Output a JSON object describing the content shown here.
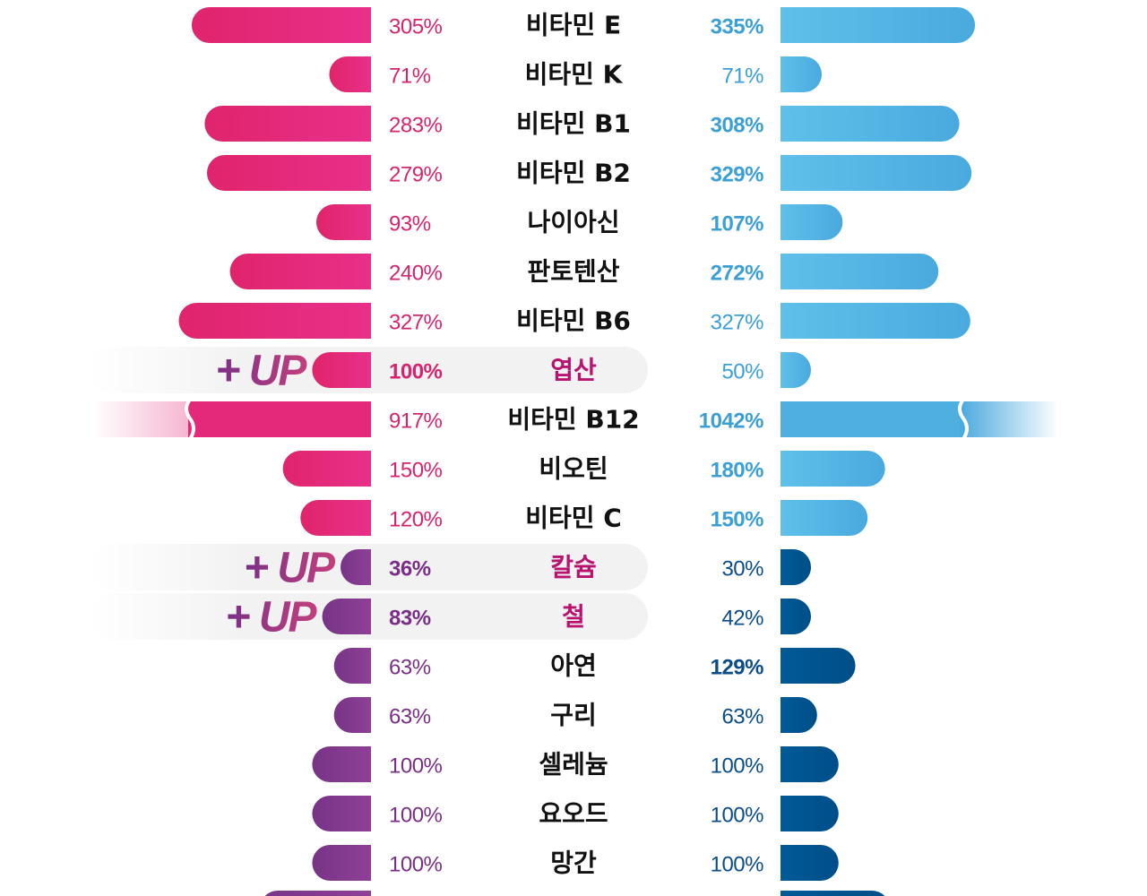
{
  "chart_data": {
    "type": "bar",
    "orientation": "horizontal-butterfly",
    "grid": false,
    "legend": "none",
    "highlight_tag": "+ UP",
    "colors": {
      "vitamin_left": "#e5297a",
      "vitamin_left_dark": "#db1f66",
      "mineral_left": "#7e3a8c",
      "mineral_left_light": "#8c3f93",
      "vitamin_right": "#4fb0e0",
      "vitamin_right_light": "#5dbde8",
      "mineral_right": "#00538f",
      "label_pink": "#d6246e",
      "label_purple": "#7a2f87",
      "label_sky": "#3a9fd6",
      "label_navy": "#0b4d8a",
      "highlight_bg": "#f2f2f2",
      "highlight_text": "#b8136f",
      "up_text": "#8e2f7e",
      "name_text": "#111111"
    },
    "rows": [
      {
        "name": "비타민 E",
        "group": "vitamin",
        "left": 305,
        "left_label": "305%",
        "right": 335,
        "right_label": "335%",
        "right_bold": true,
        "highlight": false,
        "broken": false
      },
      {
        "name": "비타민 K",
        "group": "vitamin",
        "left": 71,
        "left_label": "71%",
        "right": 71,
        "right_label": "71%",
        "right_bold": false,
        "highlight": false,
        "broken": false
      },
      {
        "name": "비타민 B1",
        "group": "vitamin",
        "left": 283,
        "left_label": "283%",
        "right": 308,
        "right_label": "308%",
        "right_bold": true,
        "highlight": false,
        "broken": false
      },
      {
        "name": "비타민 B2",
        "group": "vitamin",
        "left": 279,
        "left_label": "279%",
        "right": 329,
        "right_label": "329%",
        "right_bold": true,
        "highlight": false,
        "broken": false
      },
      {
        "name": "나이아신",
        "group": "vitamin",
        "left": 93,
        "left_label": "93%",
        "right": 107,
        "right_label": "107%",
        "right_bold": true,
        "highlight": false,
        "broken": false
      },
      {
        "name": "판토텐산",
        "group": "vitamin",
        "left": 240,
        "left_label": "240%",
        "right": 272,
        "right_label": "272%",
        "right_bold": true,
        "highlight": false,
        "broken": false
      },
      {
        "name": "비타민 B6",
        "group": "vitamin",
        "left": 327,
        "left_label": "327%",
        "right": 327,
        "right_label": "327%",
        "right_bold": false,
        "highlight": false,
        "broken": false
      },
      {
        "name": "엽산",
        "group": "vitamin",
        "left": 100,
        "left_label": "100%",
        "right": 50,
        "right_label": "50%",
        "right_bold": false,
        "highlight": true,
        "broken": false
      },
      {
        "name": "비타민 B12",
        "group": "vitamin",
        "left": 917,
        "left_label": "917%",
        "right": 1042,
        "right_label": "1042%",
        "right_bold": true,
        "highlight": false,
        "broken": true
      },
      {
        "name": "비오틴",
        "group": "vitamin",
        "left": 150,
        "left_label": "150%",
        "right": 180,
        "right_label": "180%",
        "right_bold": true,
        "highlight": false,
        "broken": false
      },
      {
        "name": "비타민 C",
        "group": "vitamin",
        "left": 120,
        "left_label": "120%",
        "right": 150,
        "right_label": "150%",
        "right_bold": true,
        "highlight": false,
        "broken": false
      },
      {
        "name": "칼슘",
        "group": "mineral",
        "left": 36,
        "left_label": "36%",
        "right": 30,
        "right_label": "30%",
        "right_bold": false,
        "highlight": true,
        "broken": false
      },
      {
        "name": "철",
        "group": "mineral",
        "left": 83,
        "left_label": "83%",
        "right": 42,
        "right_label": "42%",
        "right_bold": false,
        "highlight": true,
        "broken": false
      },
      {
        "name": "아연",
        "group": "mineral",
        "left": 63,
        "left_label": "63%",
        "right": 129,
        "right_label": "129%",
        "right_bold": true,
        "highlight": false,
        "broken": false
      },
      {
        "name": "구리",
        "group": "mineral",
        "left": 63,
        "left_label": "63%",
        "right": 63,
        "right_label": "63%",
        "right_bold": false,
        "highlight": false,
        "broken": false
      },
      {
        "name": "셀레늄",
        "group": "mineral",
        "left": 100,
        "left_label": "100%",
        "right": 100,
        "right_label": "100%",
        "right_bold": false,
        "highlight": false,
        "broken": false
      },
      {
        "name": "요오드",
        "group": "mineral",
        "left": 100,
        "left_label": "100%",
        "right": 100,
        "right_label": "100%",
        "right_bold": false,
        "highlight": false,
        "broken": false
      },
      {
        "name": "망간",
        "group": "mineral",
        "left": 100,
        "left_label": "100%",
        "right": 100,
        "right_label": "100%",
        "right_bold": false,
        "highlight": false,
        "broken": false
      }
    ]
  }
}
